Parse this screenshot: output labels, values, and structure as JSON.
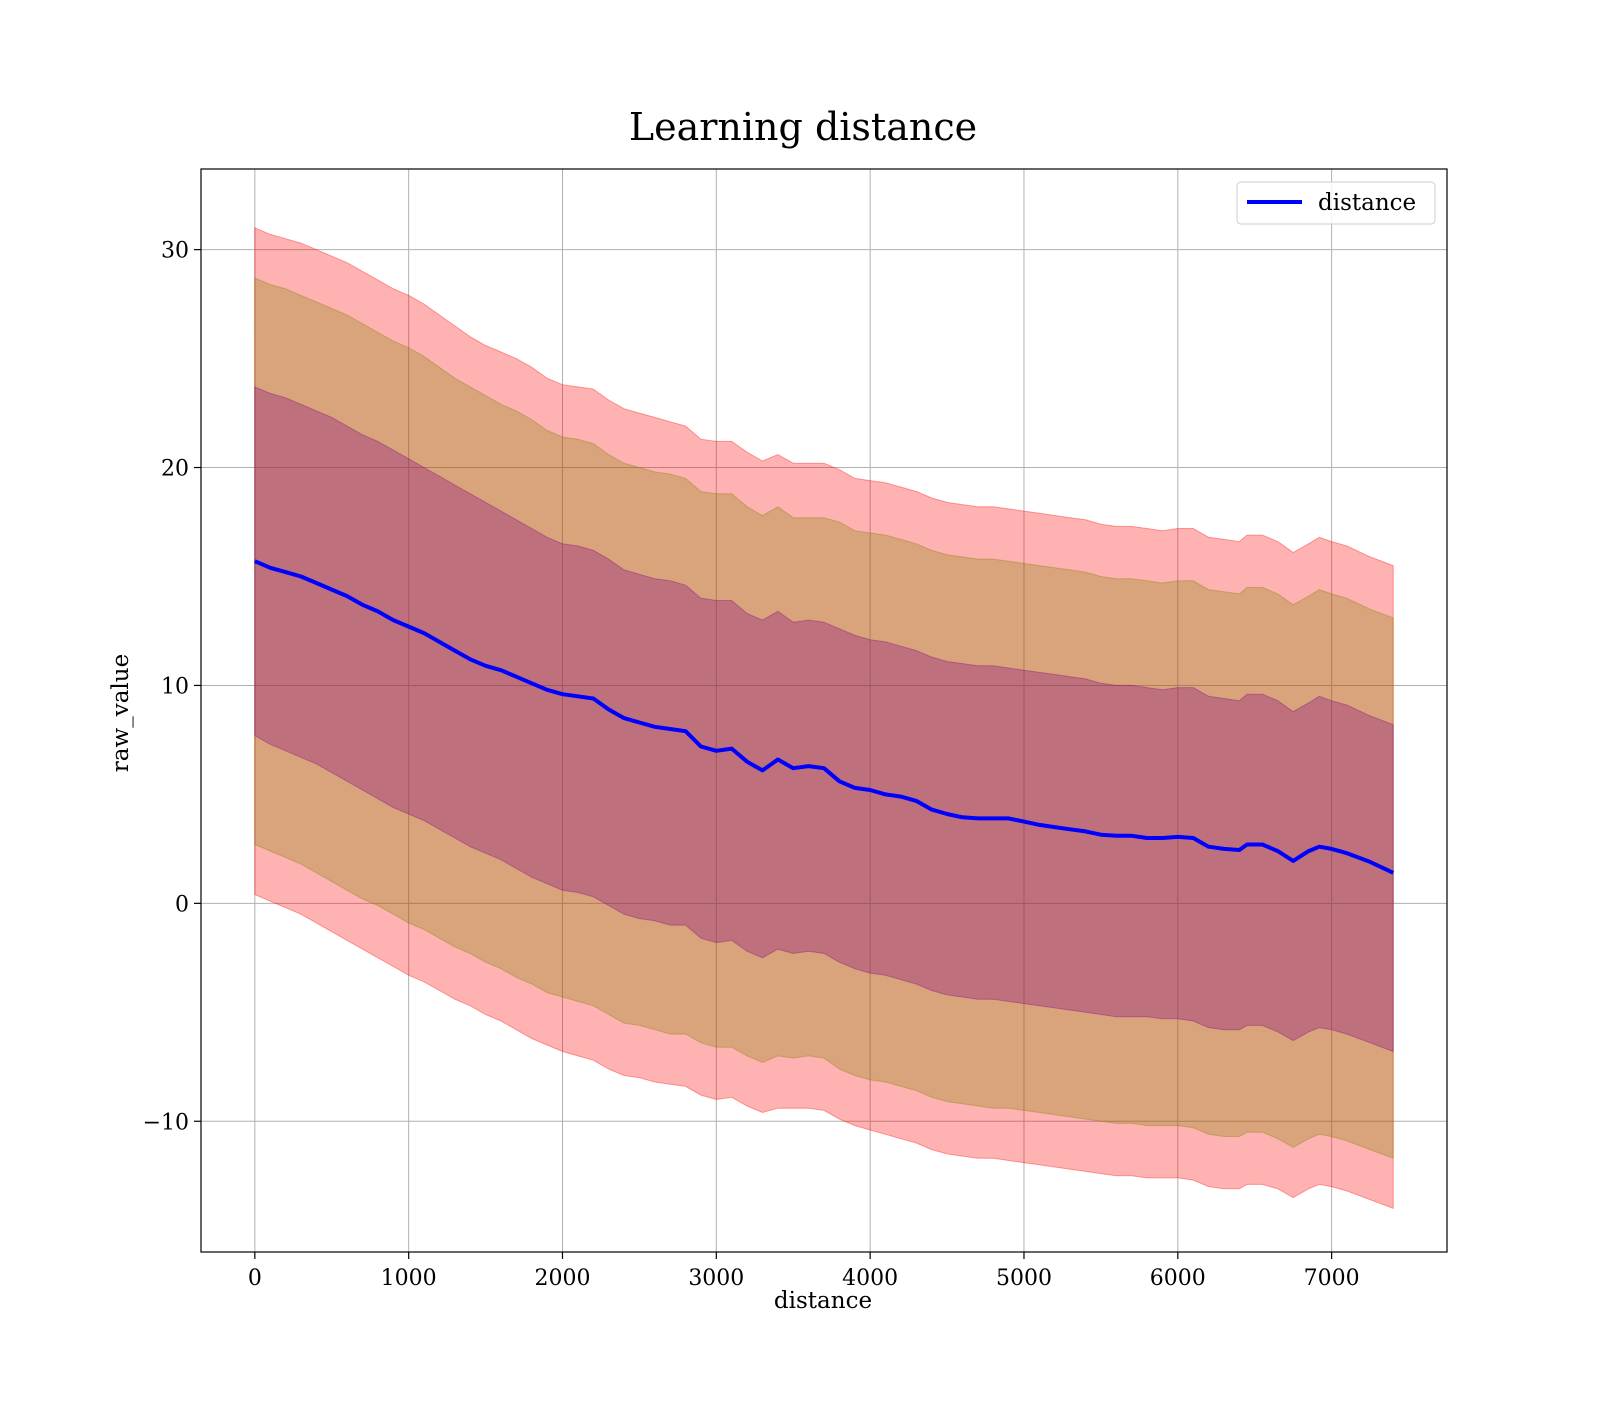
{
  "chart_data": {
    "type": "line",
    "title": "Learning distance",
    "xlabel": "distance",
    "ylabel": "raw_value",
    "xlim": [
      -350,
      7750
    ],
    "ylim": [
      -16,
      33.7
    ],
    "xticks": [
      0,
      1000,
      2000,
      3000,
      4000,
      5000,
      6000,
      7000
    ],
    "xtick_labels": [
      "0",
      "1000",
      "2000",
      "3000",
      "4000",
      "5000",
      "6000",
      "7000"
    ],
    "yticks": [
      -10,
      0,
      10,
      20,
      30
    ],
    "ytick_labels": [
      "−10",
      "0",
      "10",
      "20",
      "30"
    ],
    "grid": true,
    "legend": {
      "position": "upper right",
      "entries": [
        "distance"
      ]
    },
    "colors": {
      "line": "#0000ff",
      "band_outer": "#ff0000",
      "band_middle": "#808000",
      "band_inner": "#800080",
      "grid": "#b0b0b0"
    },
    "series": [
      {
        "name": "distance",
        "x": [
          0,
          100,
          200,
          300,
          400,
          500,
          600,
          700,
          800,
          900,
          1000,
          1100,
          1200,
          1300,
          1400,
          1500,
          1600,
          1700,
          1800,
          1900,
          2000,
          2100,
          2200,
          2300,
          2400,
          2500,
          2600,
          2700,
          2800,
          2900,
          3000,
          3100,
          3200,
          3300,
          3400,
          3500,
          3600,
          3700,
          3800,
          3900,
          4000,
          4100,
          4200,
          4300,
          4400,
          4500,
          4600,
          4700,
          4800,
          4900,
          5000,
          5100,
          5200,
          5300,
          5400,
          5500,
          5600,
          5700,
          5800,
          5900,
          6000,
          6100,
          6200,
          6300,
          6400,
          6450,
          6550,
          6650,
          6750,
          6850,
          6920,
          7000,
          7100,
          7250,
          7400
        ],
        "y": [
          15.7,
          15.4,
          15.2,
          15.0,
          14.7,
          14.4,
          14.1,
          13.7,
          13.4,
          13.0,
          12.7,
          12.4,
          12.0,
          11.6,
          11.2,
          10.9,
          10.7,
          10.4,
          10.1,
          9.8,
          9.6,
          9.5,
          9.4,
          8.9,
          8.5,
          8.3,
          8.1,
          8.0,
          7.9,
          7.2,
          7.0,
          7.1,
          6.5,
          6.1,
          6.6,
          6.2,
          6.3,
          6.2,
          5.6,
          5.3,
          5.2,
          5.0,
          4.9,
          4.7,
          4.3,
          4.1,
          3.95,
          3.9,
          3.9,
          3.9,
          3.75,
          3.6,
          3.5,
          3.4,
          3.3,
          3.15,
          3.1,
          3.1,
          3.0,
          3.0,
          3.05,
          3.0,
          2.6,
          2.5,
          2.45,
          2.7,
          2.7,
          2.4,
          1.95,
          2.4,
          2.6,
          2.5,
          2.3,
          1.9,
          1.4
        ]
      }
    ],
    "bands": [
      {
        "color": "red",
        "lower": [
          0.4,
          0.1,
          -0.2,
          -0.5,
          -0.9,
          -1.3,
          -1.7,
          -2.1,
          -2.5,
          -2.9,
          -3.3,
          -3.6,
          -4.0,
          -4.4,
          -4.7,
          -5.1,
          -5.4,
          -5.8,
          -6.2,
          -6.5,
          -6.8,
          -7.0,
          -7.2,
          -7.6,
          -7.9,
          -8.0,
          -8.2,
          -8.3,
          -8.4,
          -8.8,
          -9.0,
          -8.9,
          -9.3,
          -9.6,
          -9.4,
          -9.4,
          -9.4,
          -9.5,
          -9.9,
          -10.2,
          -10.4,
          -10.6,
          -10.8,
          -11.0,
          -11.3,
          -11.5,
          -11.6,
          -11.7,
          -11.7,
          -11.8,
          -11.9,
          -12.0,
          -12.1,
          -12.2,
          -12.3,
          -12.4,
          -12.5,
          -12.5,
          -12.6,
          -12.6,
          -12.6,
          -12.7,
          -13.0,
          -13.1,
          -13.1,
          -12.9,
          -12.9,
          -13.1,
          -13.5,
          -13.1,
          -12.9,
          -13.0,
          -13.2,
          -13.6,
          -14.0
        ],
        "upper": [
          31.0,
          30.7,
          30.5,
          30.3,
          30.0,
          29.7,
          29.4,
          29.0,
          28.6,
          28.2,
          27.9,
          27.5,
          27.0,
          26.5,
          26.0,
          25.6,
          25.3,
          25.0,
          24.6,
          24.1,
          23.8,
          23.7,
          23.6,
          23.1,
          22.7,
          22.5,
          22.3,
          22.1,
          21.9,
          21.3,
          21.2,
          21.2,
          20.7,
          20.3,
          20.6,
          20.2,
          20.2,
          20.2,
          19.9,
          19.5,
          19.4,
          19.3,
          19.1,
          18.9,
          18.6,
          18.4,
          18.3,
          18.2,
          18.2,
          18.1,
          18.0,
          17.9,
          17.8,
          17.7,
          17.6,
          17.4,
          17.3,
          17.3,
          17.2,
          17.1,
          17.2,
          17.2,
          16.8,
          16.7,
          16.6,
          16.9,
          16.9,
          16.6,
          16.1,
          16.5,
          16.8,
          16.6,
          16.4,
          15.9,
          15.5
        ]
      },
      {
        "color": "olive",
        "lower": [
          2.7,
          2.4,
          2.1,
          1.8,
          1.4,
          1.0,
          0.6,
          0.2,
          -0.1,
          -0.5,
          -0.9,
          -1.2,
          -1.6,
          -2.0,
          -2.3,
          -2.7,
          -3.0,
          -3.4,
          -3.7,
          -4.1,
          -4.3,
          -4.5,
          -4.7,
          -5.1,
          -5.5,
          -5.6,
          -5.8,
          -6.0,
          -6.0,
          -6.4,
          -6.6,
          -6.6,
          -7.0,
          -7.3,
          -7.0,
          -7.1,
          -7.0,
          -7.1,
          -7.6,
          -7.9,
          -8.1,
          -8.2,
          -8.4,
          -8.6,
          -8.9,
          -9.1,
          -9.2,
          -9.3,
          -9.4,
          -9.4,
          -9.5,
          -9.6,
          -9.7,
          -9.8,
          -9.9,
          -10.0,
          -10.1,
          -10.1,
          -10.2,
          -10.2,
          -10.2,
          -10.3,
          -10.6,
          -10.7,
          -10.7,
          -10.5,
          -10.5,
          -10.8,
          -11.2,
          -10.8,
          -10.6,
          -10.7,
          -10.9,
          -11.3,
          -11.7
        ],
        "upper": [
          28.7,
          28.4,
          28.2,
          27.9,
          27.6,
          27.3,
          27.0,
          26.6,
          26.2,
          25.8,
          25.5,
          25.1,
          24.6,
          24.1,
          23.7,
          23.3,
          22.9,
          22.6,
          22.2,
          21.7,
          21.4,
          21.3,
          21.1,
          20.6,
          20.2,
          20.0,
          19.8,
          19.7,
          19.5,
          18.9,
          18.8,
          18.8,
          18.2,
          17.8,
          18.2,
          17.7,
          17.7,
          17.7,
          17.5,
          17.1,
          17.0,
          16.9,
          16.7,
          16.5,
          16.2,
          16.0,
          15.9,
          15.8,
          15.8,
          15.7,
          15.6,
          15.5,
          15.4,
          15.3,
          15.2,
          15.0,
          14.9,
          14.9,
          14.8,
          14.7,
          14.8,
          14.8,
          14.4,
          14.3,
          14.2,
          14.5,
          14.5,
          14.2,
          13.7,
          14.1,
          14.4,
          14.2,
          14.0,
          13.5,
          13.1
        ]
      },
      {
        "color": "purple",
        "lower": [
          7.7,
          7.3,
          7.0,
          6.7,
          6.4,
          6.0,
          5.6,
          5.2,
          4.8,
          4.4,
          4.1,
          3.8,
          3.4,
          3.0,
          2.6,
          2.3,
          2.0,
          1.6,
          1.2,
          0.9,
          0.6,
          0.5,
          0.3,
          -0.1,
          -0.5,
          -0.7,
          -0.8,
          -1.0,
          -1.0,
          -1.6,
          -1.8,
          -1.7,
          -2.2,
          -2.5,
          -2.1,
          -2.3,
          -2.2,
          -2.3,
          -2.7,
          -3.0,
          -3.2,
          -3.3,
          -3.5,
          -3.7,
          -4.0,
          -4.2,
          -4.3,
          -4.4,
          -4.4,
          -4.5,
          -4.6,
          -4.7,
          -4.8,
          -4.9,
          -5.0,
          -5.1,
          -5.2,
          -5.2,
          -5.2,
          -5.3,
          -5.3,
          -5.4,
          -5.7,
          -5.8,
          -5.8,
          -5.6,
          -5.6,
          -5.9,
          -6.3,
          -5.9,
          -5.7,
          -5.8,
          -6.0,
          -6.4,
          -6.8
        ],
        "upper": [
          23.7,
          23.4,
          23.2,
          22.9,
          22.6,
          22.3,
          21.9,
          21.5,
          21.2,
          20.8,
          20.4,
          20.0,
          19.6,
          19.2,
          18.8,
          18.4,
          18.0,
          17.6,
          17.2,
          16.8,
          16.5,
          16.4,
          16.2,
          15.8,
          15.3,
          15.1,
          14.9,
          14.8,
          14.6,
          14.0,
          13.9,
          13.9,
          13.3,
          13.0,
          13.4,
          12.9,
          13.0,
          12.9,
          12.6,
          12.3,
          12.1,
          12.0,
          11.8,
          11.6,
          11.3,
          11.1,
          11.0,
          10.9,
          10.9,
          10.8,
          10.7,
          10.6,
          10.5,
          10.4,
          10.3,
          10.1,
          10.0,
          10.0,
          9.9,
          9.8,
          9.9,
          9.9,
          9.5,
          9.4,
          9.3,
          9.6,
          9.6,
          9.3,
          8.8,
          9.2,
          9.5,
          9.3,
          9.1,
          8.6,
          8.2
        ]
      }
    ]
  }
}
